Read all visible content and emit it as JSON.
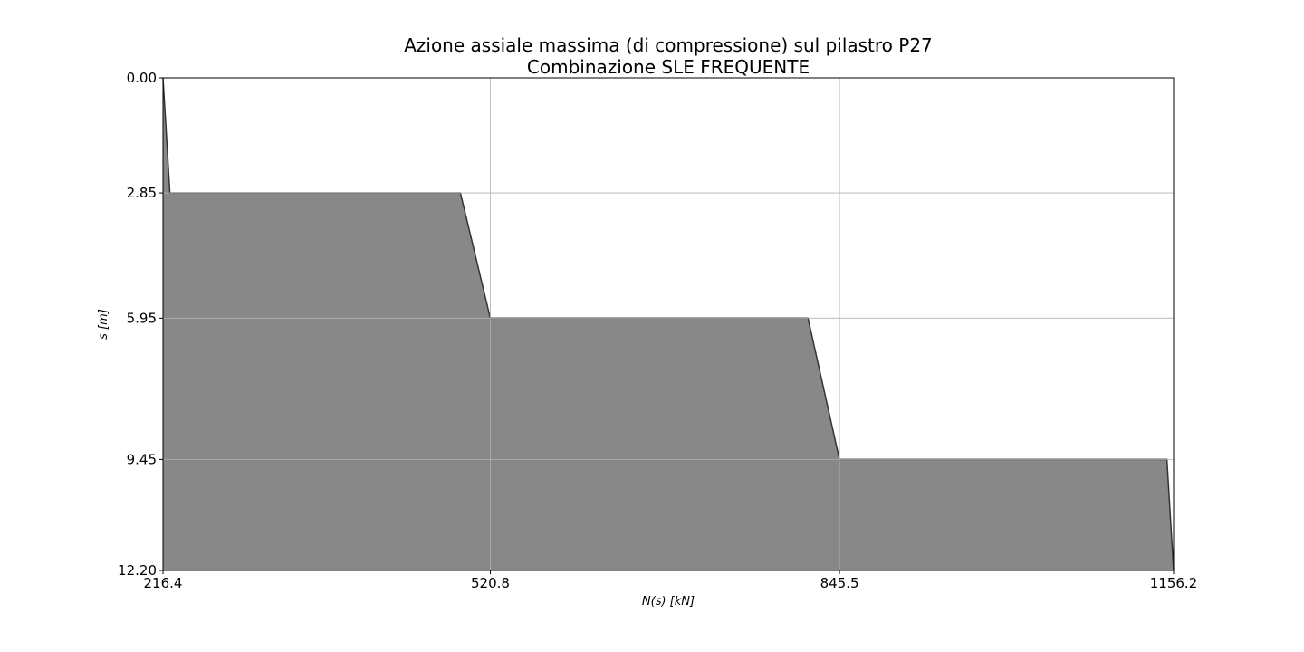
{
  "chart_data": {
    "type": "area",
    "title": "Azione assiale massima (di compressione) sul pilastro P27",
    "subtitle": "Combinazione SLE FREQUENTE",
    "xlabel": "N(s) [kN]",
    "ylabel": "s [m]",
    "xlim": [
      216.4,
      1156.2
    ],
    "ylim": [
      12.2,
      0.0
    ],
    "y_inverted": true,
    "grid": true,
    "x_ticks": [
      "216.4",
      "520.8",
      "845.5",
      "1156.2"
    ],
    "x_tick_values": [
      216.4,
      520.8,
      845.5,
      1156.2
    ],
    "y_ticks": [
      "0.00",
      "2.85",
      "5.95",
      "9.45",
      "12.20"
    ],
    "y_tick_values": [
      0.0,
      2.85,
      5.95,
      9.45,
      12.2
    ],
    "series": [
      {
        "x": [
          216.4,
          222.8,
          493.0,
          520.8,
          816.2,
          845.5,
          1150.0,
          1156.2
        ],
        "y": [
          0.0,
          2.85,
          2.85,
          5.95,
          5.95,
          9.45,
          9.45,
          12.2
        ]
      }
    ],
    "fill_color": "#888888",
    "line_color": "#333333",
    "grid_color": "#b0b0b0"
  }
}
